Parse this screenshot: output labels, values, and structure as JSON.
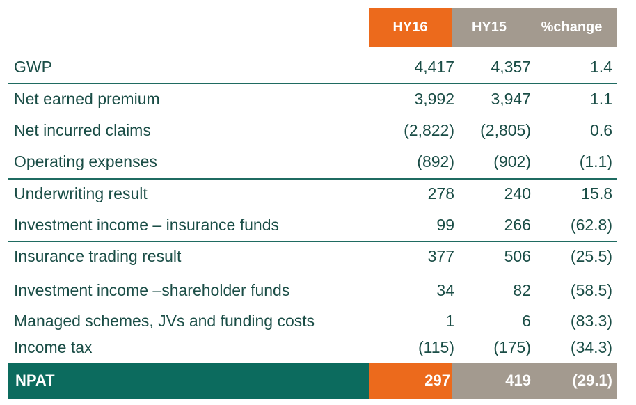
{
  "header": {
    "hy16": "HY16",
    "hy15": "HY15",
    "change": "%change"
  },
  "rows": [
    {
      "label": "GWP",
      "hy16": "4,417",
      "hy15": "4,357",
      "change": "1.4"
    },
    {
      "label": "Net earned premium",
      "hy16": "3,992",
      "hy15": "3,947",
      "change": "1.1"
    },
    {
      "label": "Net incurred claims",
      "hy16": "(2,822)",
      "hy15": "(2,805)",
      "change": "0.6"
    },
    {
      "label": "Operating expenses",
      "hy16": "(892)",
      "hy15": "(902)",
      "change": "(1.1)"
    },
    {
      "label": "Underwriting result",
      "hy16": "278",
      "hy15": "240",
      "change": "15.8"
    },
    {
      "label": "Investment income – insurance funds",
      "hy16": "99",
      "hy15": "266",
      "change": "(62.8)"
    },
    {
      "label": "Insurance trading result",
      "hy16": "377",
      "hy15": "506",
      "change": "(25.5)"
    },
    {
      "label": "Investment income –shareholder funds",
      "hy16": "34",
      "hy15": "82",
      "change": "(58.5)"
    },
    {
      "label": "Managed schemes, JVs and funding costs",
      "hy16": "1",
      "hy15": "6",
      "change": "(83.3)"
    },
    {
      "label": "Income tax",
      "hy16": "(115)",
      "hy15": "(175)",
      "change": "(34.3)"
    }
  ],
  "total": {
    "label": "NPAT",
    "hy16": "297",
    "hy15": "419",
    "change": "(29.1)"
  },
  "colors": {
    "orange": "#ec6a1c",
    "taupe": "#a39a8f",
    "teal": "#0c6b5e",
    "text": "#1a4d46"
  }
}
